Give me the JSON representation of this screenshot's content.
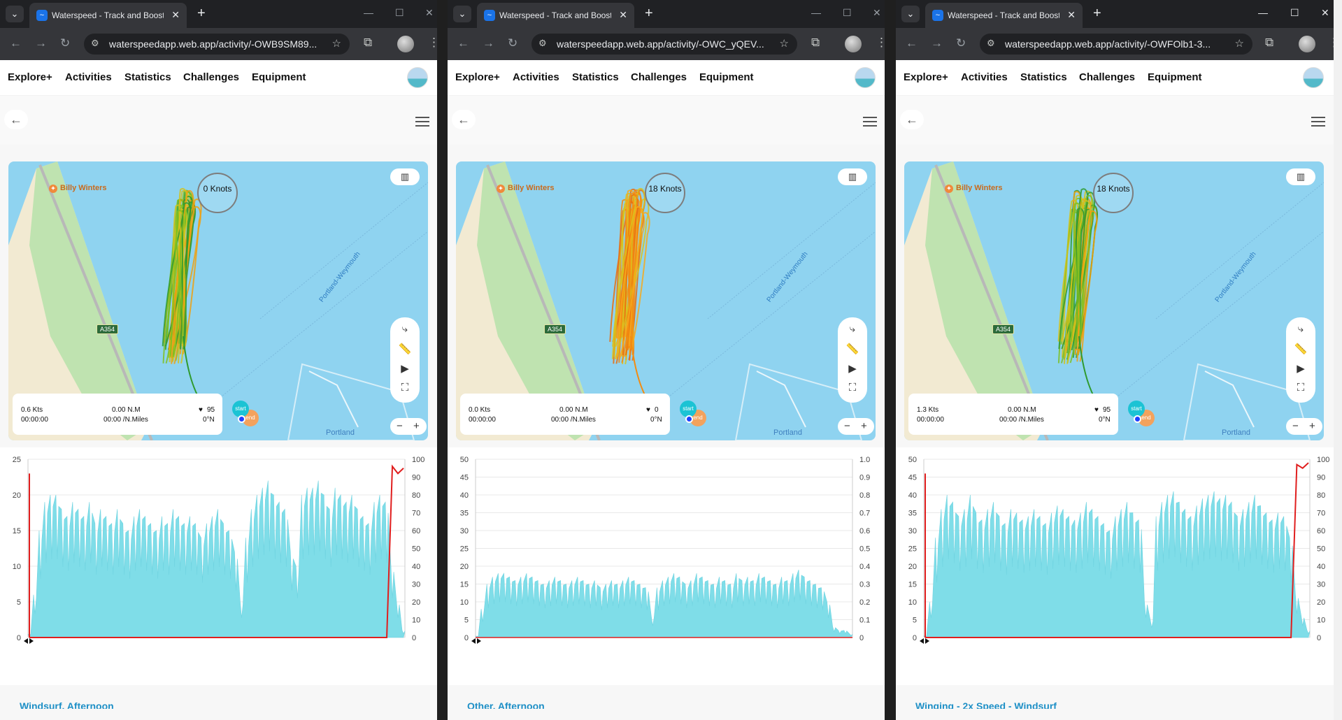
{
  "windows": [
    {
      "tab_title": "Waterspeed - Track and Boost y",
      "url": "waterspeedapp.web.app/activity/-OWB9SM89...",
      "speed_label": "0 Knots",
      "info": {
        "speed": "0.6 Kts",
        "time": "00:00:00",
        "distance": "0.00 N.M",
        "pace": "00:00 /N.Miles",
        "heart": "95",
        "heading": "0°N"
      },
      "track_palette": "green",
      "chart_title": "Windsurf, Afternoon",
      "chart_data": {
        "type": "area",
        "series": [
          {
            "values": [
              0.5,
              6,
              15,
              19,
              20,
              20,
              18,
              17,
              19,
              18,
              17,
              19,
              16,
              18,
              17,
              16,
              18,
              16,
              15,
              17,
              18,
              17,
              16,
              15,
              17,
              16,
              18,
              17,
              16,
              17,
              16,
              14,
              16,
              17,
              18,
              16,
              15,
              12,
              5,
              14,
              18,
              20,
              21,
              22,
              20,
              19,
              18,
              12,
              10,
              20,
              21,
              21,
              22,
              20,
              18,
              21,
              20,
              19,
              20,
              18,
              17,
              16,
              19,
              20,
              19,
              10,
              5,
              1
            ]
          },
          {
            "values": [
              0,
              0,
              0,
              0,
              0,
              0,
              0,
              0,
              0,
              0,
              0,
              0,
              0,
              0,
              0,
              0,
              0,
              0,
              0,
              0,
              0,
              0,
              0,
              0,
              0,
              0,
              0,
              0,
              0,
              0,
              0,
              0,
              0,
              0,
              0,
              0,
              0,
              0,
              0,
              0,
              0,
              0,
              0,
              0,
              0,
              0,
              0,
              0,
              0,
              0,
              0,
              0,
              0,
              0,
              0,
              0,
              0,
              0,
              0,
              0,
              0,
              0,
              0,
              0,
              0,
              96,
              92,
              95
            ]
          }
        ],
        "left_axis": {
          "range": [
            0,
            25
          ],
          "ticks": [
            0,
            5,
            10,
            15,
            20,
            25
          ]
        },
        "right_axis": {
          "range": [
            0,
            100
          ],
          "ticks": [
            0,
            10,
            20,
            30,
            40,
            50,
            60,
            70,
            80,
            90,
            100
          ]
        }
      }
    },
    {
      "tab_title": "Waterspeed - Track and Boost y",
      "url": "waterspeedapp.web.app/activity/-OWC_yQEV...",
      "speed_label": "18 Knots",
      "info": {
        "speed": "0.0 Kts",
        "time": "00:00:00",
        "distance": "0.00 N.M",
        "pace": "00:00 /N.Miles",
        "heart": "0",
        "heading": "0°N"
      },
      "track_palette": "orange",
      "chart_title": "Other, Afternoon",
      "chart_data": {
        "type": "area",
        "series": [
          {
            "values": [
              0.5,
              8,
              15,
              17,
              18,
              18,
              17,
              16,
              17,
              18,
              17,
              16,
              15,
              16,
              17,
              16,
              15,
              16,
              17,
              16,
              15,
              16,
              14,
              15,
              16,
              15,
              16,
              17,
              16,
              15,
              14,
              6,
              14,
              16,
              17,
              18,
              17,
              15,
              16,
              18,
              17,
              16,
              15,
              17,
              16,
              15,
              18,
              16,
              17,
              16,
              18,
              17,
              16,
              15,
              17,
              16,
              18,
              19,
              17,
              16,
              15,
              14,
              10,
              3,
              2,
              2,
              1
            ]
          }
        ],
        "left_axis": {
          "range": [
            0,
            50
          ],
          "ticks": [
            0,
            5,
            10,
            15,
            20,
            25,
            30,
            35,
            40,
            45,
            50
          ]
        },
        "right_axis": {
          "range": [
            0,
            1
          ],
          "ticks": [
            0,
            0.1,
            0.2,
            0.3,
            0.4,
            0.5,
            0.6,
            0.7,
            0.8,
            0.9,
            1.0
          ]
        }
      }
    },
    {
      "tab_title": "Waterspeed - Track and Boost y",
      "url": "waterspeedapp.web.app/activity/-OWFOlb1-3...",
      "speed_label": "18 Knots",
      "info": {
        "speed": "1.3 Kts",
        "time": "00:00:00",
        "distance": "0.00 N.M",
        "pace": "00:00 /N.Miles",
        "heart": "95",
        "heading": "0°N"
      },
      "track_palette": "green",
      "chart_title": "Winging - 2x Speed - Windsurf",
      "chart_data": {
        "type": "area",
        "series": [
          {
            "values": [
              0.5,
              10,
              28,
              36,
              40,
              38,
              34,
              36,
              40,
              35,
              33,
              36,
              38,
              34,
              32,
              36,
              35,
              33,
              34,
              36,
              34,
              32,
              35,
              37,
              36,
              34,
              33,
              35,
              38,
              36,
              34,
              32,
              30,
              34,
              36,
              38,
              35,
              33,
              10,
              5,
              34,
              38,
              40,
              41,
              38,
              36,
              34,
              37,
              39,
              40,
              41,
              39,
              40,
              38,
              34,
              36,
              38,
              40,
              37,
              35,
              33,
              35,
              34,
              28,
              12,
              6,
              2
            ]
          },
          {
            "values": [
              0,
              0,
              0,
              0,
              0,
              0,
              0,
              0,
              0,
              0,
              0,
              0,
              0,
              0,
              0,
              0,
              0,
              0,
              0,
              0,
              0,
              0,
              0,
              0,
              0,
              0,
              0,
              0,
              0,
              0,
              0,
              0,
              0,
              0,
              0,
              0,
              0,
              0,
              0,
              0,
              0,
              0,
              0,
              0,
              0,
              0,
              0,
              0,
              0,
              0,
              0,
              0,
              0,
              0,
              0,
              0,
              0,
              0,
              0,
              0,
              0,
              0,
              0,
              0,
              97,
              95,
              98
            ]
          }
        ],
        "left_axis": {
          "range": [
            0,
            50
          ],
          "ticks": [
            0,
            5,
            10,
            15,
            20,
            25,
            30,
            35,
            40,
            45,
            50
          ]
        },
        "right_axis": {
          "range": [
            0,
            100
          ],
          "ticks": [
            0,
            10,
            20,
            30,
            40,
            50,
            60,
            70,
            80,
            90,
            100
          ]
        }
      }
    }
  ],
  "nav": {
    "explore": "Explore+",
    "activities": "Activities",
    "statistics": "Statistics",
    "challenges": "Challenges",
    "equipment": "Equipment"
  },
  "map": {
    "poi": "Billy Winters",
    "road_badge": "A354",
    "water_label": "Portland-Weymouth",
    "harbour_label": "Portland"
  },
  "pins": {
    "start": "start",
    "end": "end"
  },
  "colors": {
    "speed_area": "#7fdde8",
    "heart_rate": "#e01e1e",
    "map_water": "#8fd3f0",
    "map_land": "#f2ead2"
  }
}
